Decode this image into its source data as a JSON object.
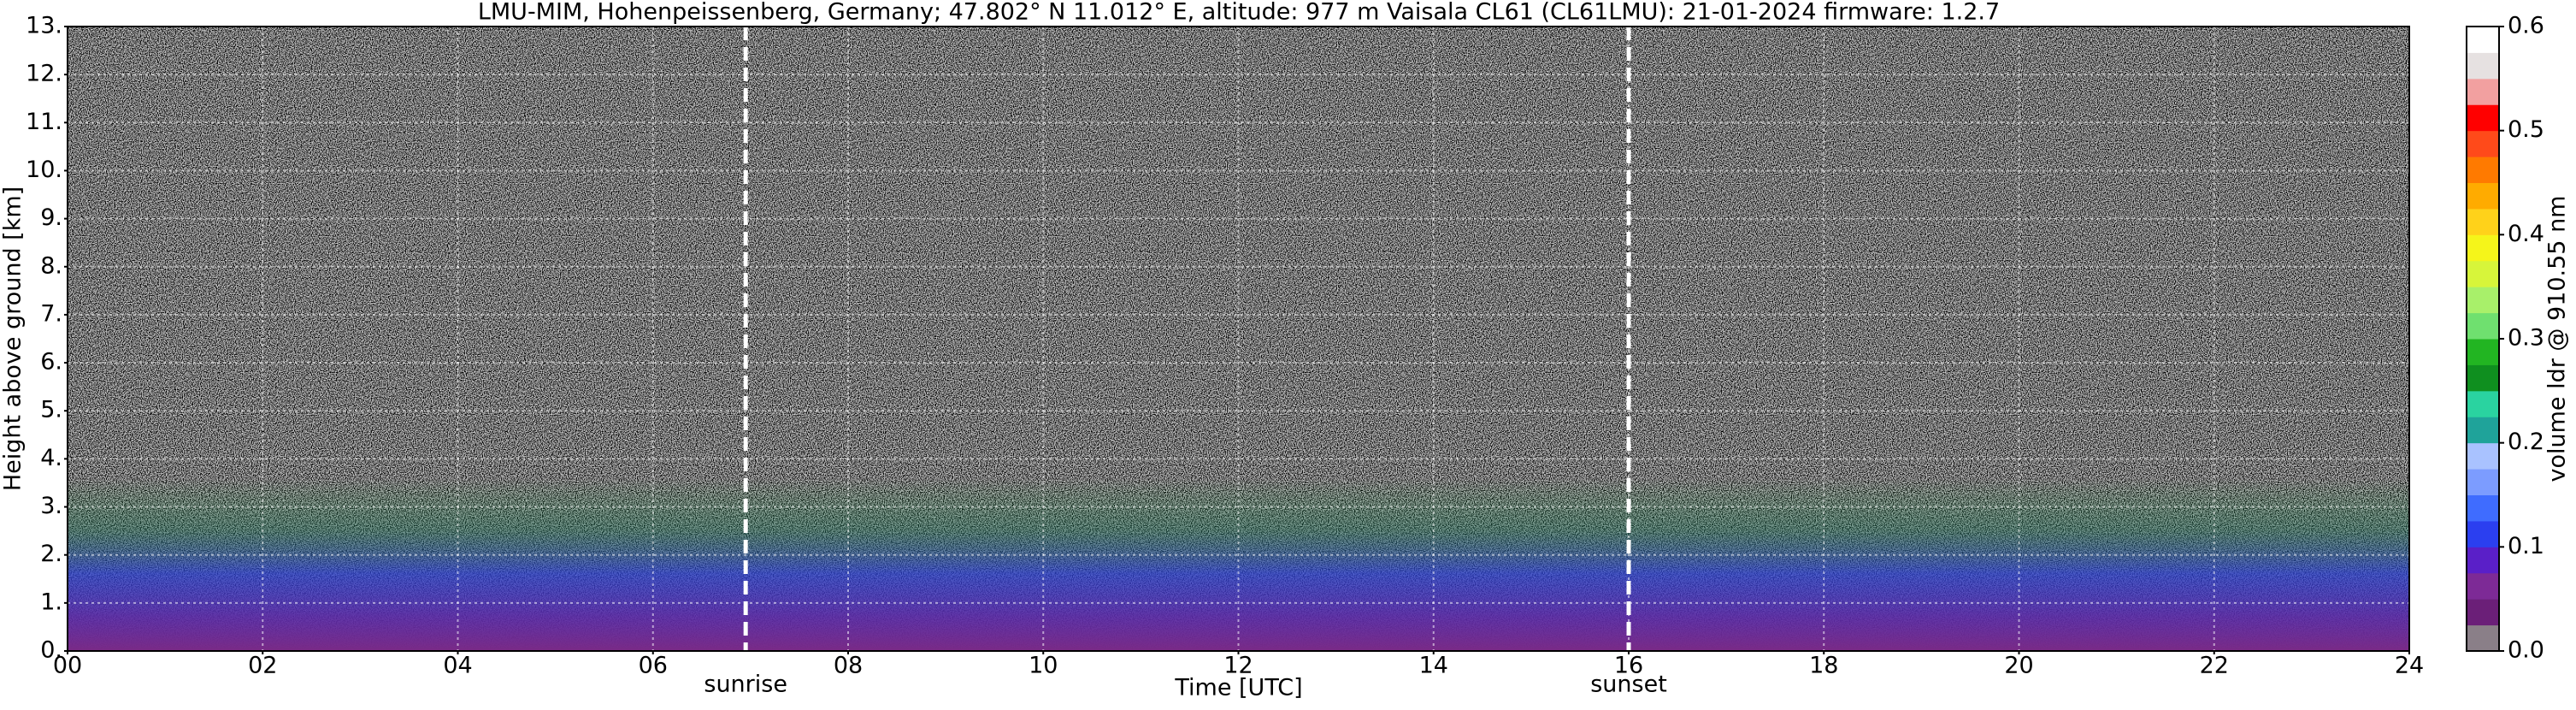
{
  "chart_data": {
    "type": "heatmap",
    "title": "LMU-MIM, Hohenpeissenberg, Germany; 47.802° N 11.012° E, altitude: 977 m    Vaisala CL61 (CL61LMU): 21-01-2024    firmware: 1.2.7",
    "xlabel": "Time [UTC]",
    "ylabel": "Height above ground [km]",
    "xlim": [
      0,
      24
    ],
    "xticks": [
      {
        "value": 0,
        "label": "00"
      },
      {
        "value": 2,
        "label": "02"
      },
      {
        "value": 4,
        "label": "04"
      },
      {
        "value": 6,
        "label": "06"
      },
      {
        "value": 8,
        "label": "08"
      },
      10,
      12,
      14,
      16,
      18,
      20,
      22,
      24
    ],
    "ylim": [
      0,
      13
    ],
    "yticks": [
      {
        "value": 0,
        "label": "0."
      },
      {
        "value": 1,
        "label": "1."
      },
      {
        "value": 2,
        "label": "2."
      },
      {
        "value": 3,
        "label": "3."
      },
      {
        "value": 4,
        "label": "4."
      },
      {
        "value": 5,
        "label": "5."
      },
      {
        "value": 6,
        "label": "6."
      },
      {
        "value": 7,
        "label": "7."
      },
      {
        "value": 8,
        "label": "8."
      },
      {
        "value": 9,
        "label": "9."
      },
      {
        "value": 10,
        "label": "10."
      },
      {
        "value": 11,
        "label": "11."
      },
      {
        "value": 12,
        "label": "12."
      },
      {
        "value": 13,
        "label": "13."
      }
    ],
    "grid": true,
    "annotations": [
      {
        "text": "sunrise",
        "x": 6.95
      },
      {
        "text": "sunset",
        "x": 16.0
      }
    ],
    "colorbar": {
      "label": "volume ldr @ 910.55 nm",
      "clim": [
        0,
        0.6
      ],
      "ticks": [
        {
          "value": 0,
          "label": "0.0"
        },
        0.1,
        0.2,
        0.3,
        0.4,
        0.5,
        0.6
      ],
      "colormap": [
        "#8a7f88",
        "#6b1f78",
        "#7d2a96",
        "#5a1fc8",
        "#2b3ff0",
        "#3f6cff",
        "#7c9cff",
        "#a9c2ff",
        "#1fa39a",
        "#2ad3a0",
        "#0f8f1f",
        "#22b522",
        "#6fe06f",
        "#a8f06a",
        "#d7f53a",
        "#f5f51a",
        "#ffd21a",
        "#ffab00",
        "#ff7a00",
        "#ff4a1a",
        "#ff0000",
        "#f2a0a0",
        "#e6e1e1",
        "#ffffff"
      ]
    }
  }
}
